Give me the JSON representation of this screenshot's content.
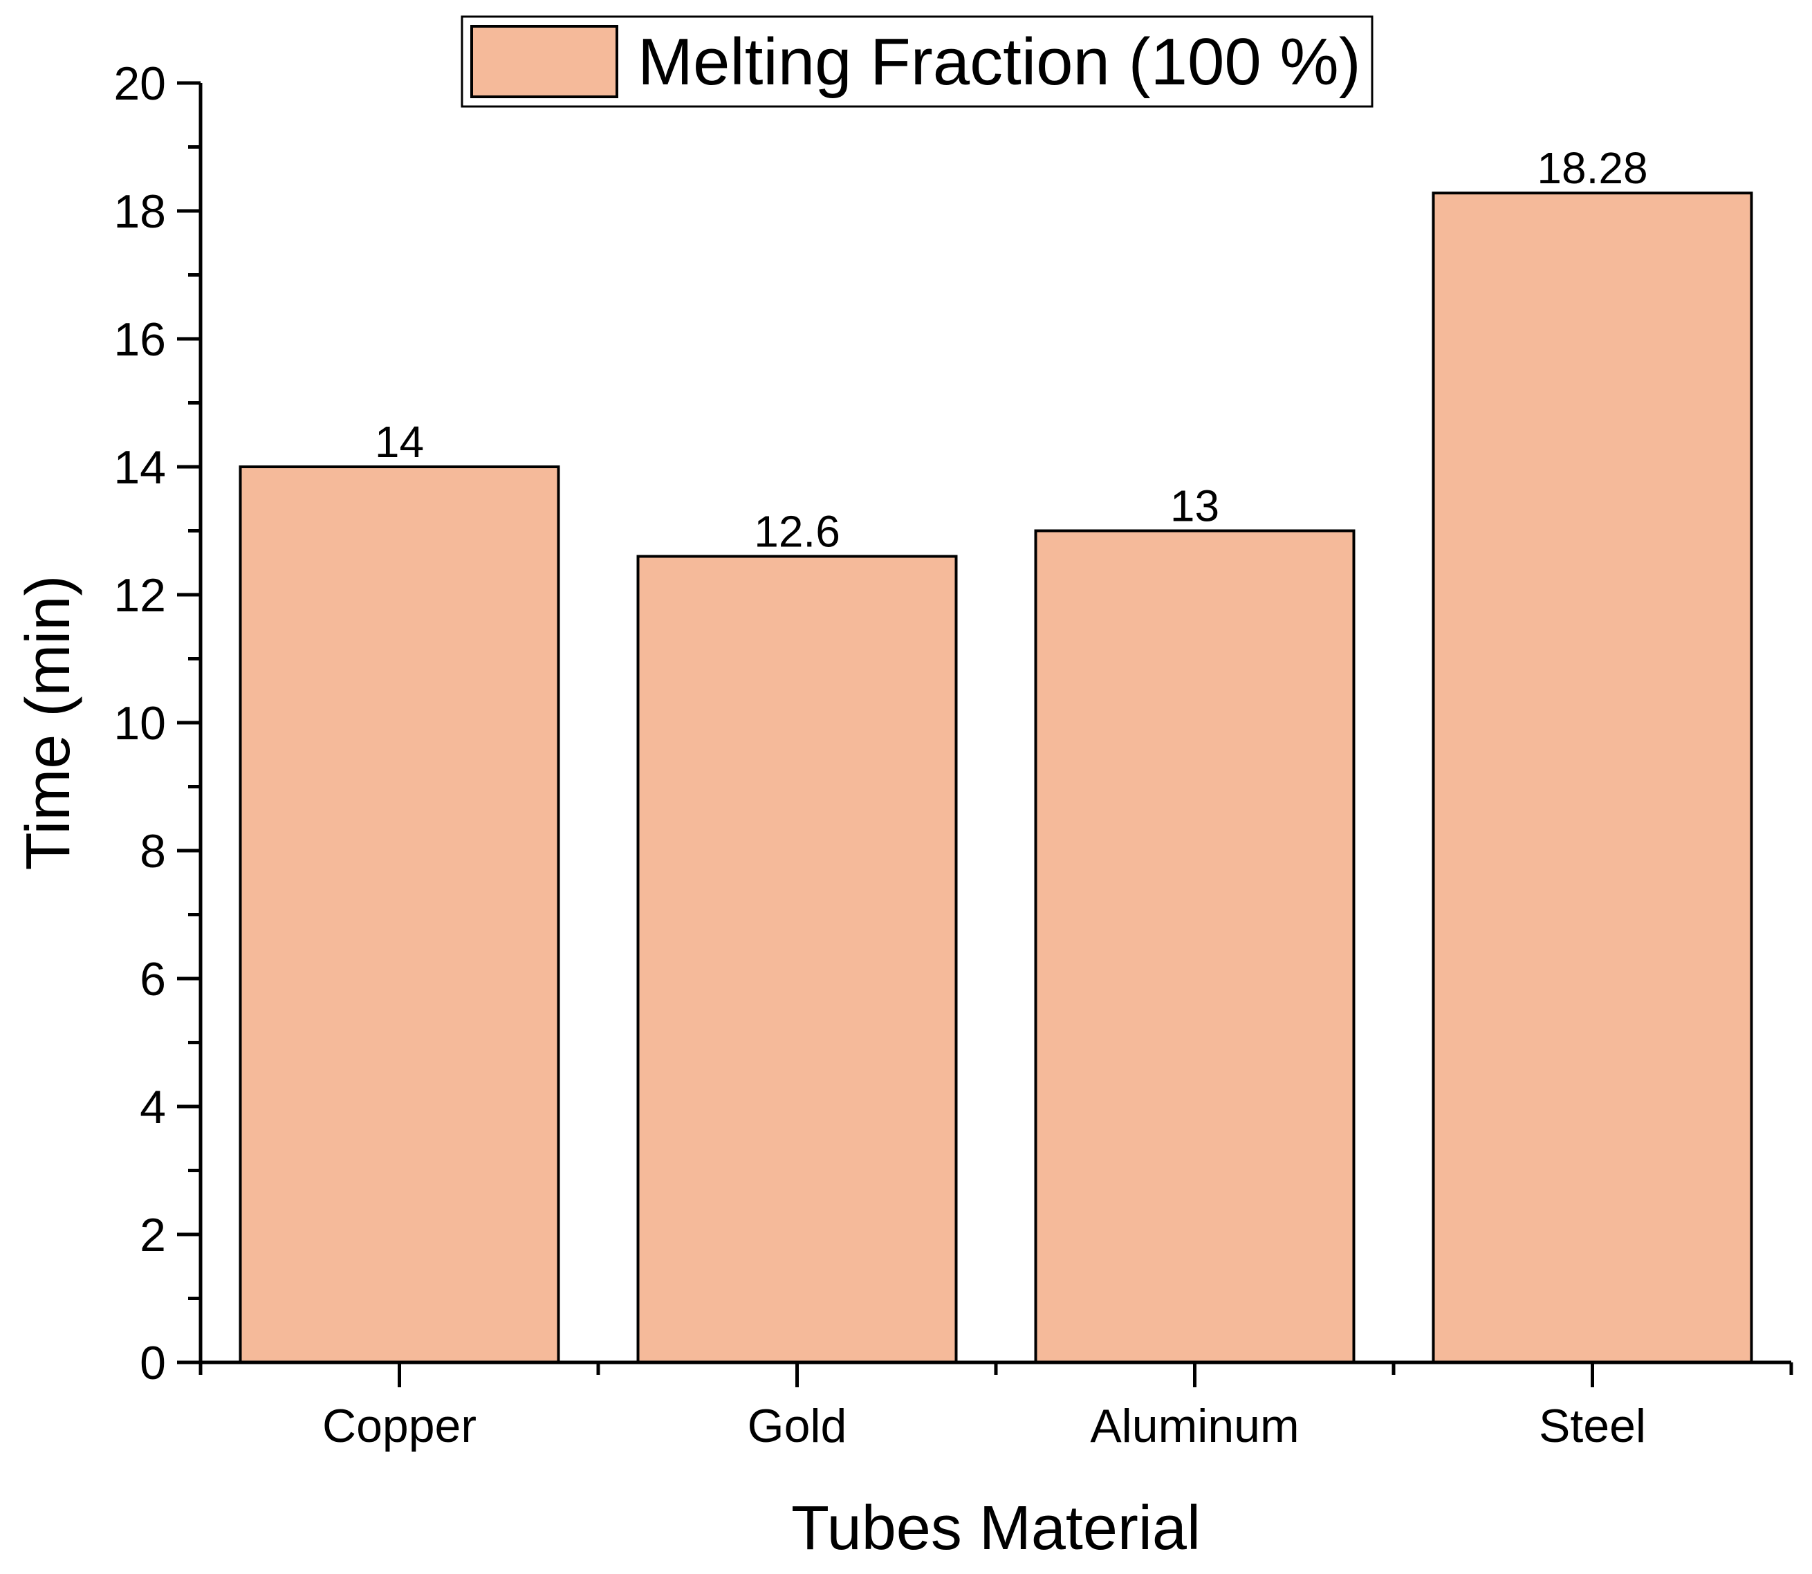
{
  "chart_data": {
    "type": "bar",
    "title": "",
    "xlabel": "Tubes Material",
    "ylabel": "Time (min)",
    "categories": [
      "Copper",
      "Gold",
      "Aluminum",
      "Steel"
    ],
    "series": [
      {
        "name": "Melting Fraction (100 %)",
        "values": [
          14,
          12.6,
          13,
          18.28
        ],
        "data_labels": [
          "14",
          "12.6",
          "13",
          "18.28"
        ],
        "color": "#F5BA9A"
      }
    ],
    "ylim": [
      0,
      20
    ],
    "yticks": [
      0,
      2,
      4,
      6,
      8,
      10,
      12,
      14,
      16,
      18,
      20
    ],
    "ytick_labels": [
      "0",
      "2",
      "4",
      "6",
      "8",
      "10",
      "12",
      "14",
      "16",
      "18",
      "20"
    ],
    "grid": false,
    "legend_position": "top-center"
  }
}
